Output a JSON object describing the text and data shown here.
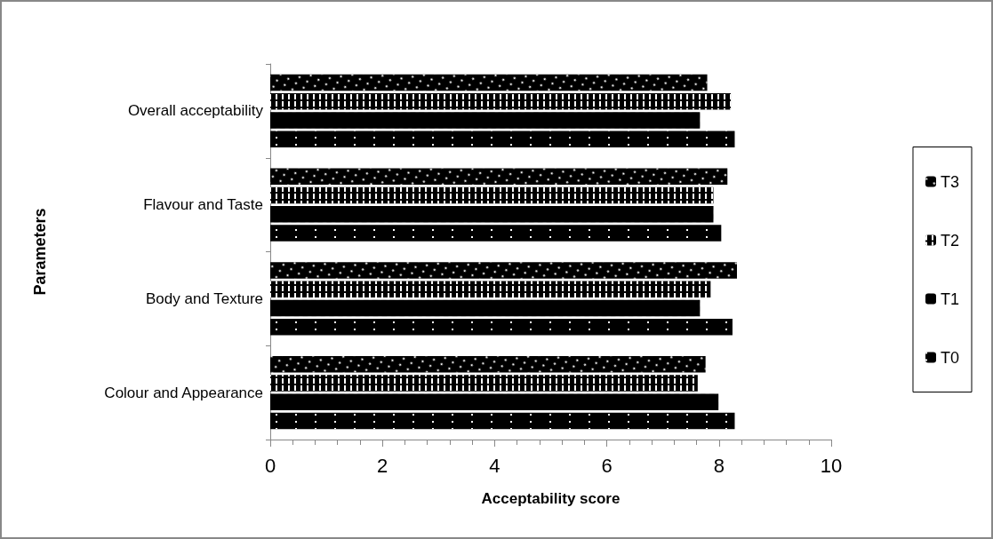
{
  "chart_data": {
    "type": "bar",
    "orientation": "horizontal",
    "xlabel": "Acceptability score",
    "ylabel": "Parameters",
    "categories": [
      "Overall acceptability",
      "Flavour and Taste",
      "Body and Texture",
      "Colour and Appearance"
    ],
    "series": [
      {
        "name": "T3",
        "color": "#000000",
        "values": [
          7.79,
          8.15,
          8.32,
          7.76
        ]
      },
      {
        "name": "T2",
        "color": "#000000",
        "values": [
          8.21,
          7.9,
          7.85,
          7.62
        ]
      },
      {
        "name": "T1",
        "color": "#000000",
        "values": [
          7.66,
          7.9,
          7.66,
          7.99
        ]
      },
      {
        "name": "T0",
        "color": "#000000",
        "values": [
          8.28,
          8.04,
          8.24,
          8.28
        ]
      }
    ],
    "xlim": [
      0,
      10
    ],
    "xticks": [
      0,
      2,
      4,
      6,
      8,
      10
    ],
    "grid": false,
    "legend": "right"
  }
}
